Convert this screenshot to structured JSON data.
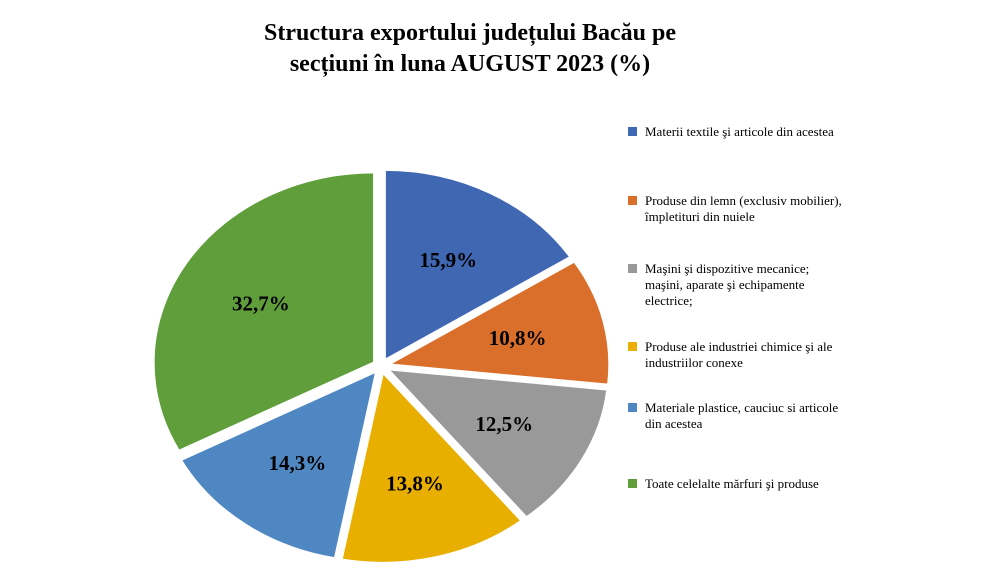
{
  "chart_data": {
    "type": "pie",
    "title_lines": [
      "Structura exportului județului Bacău pe",
      "secțiuni în luna AUGUST  2023 (%)"
    ],
    "unit": "%",
    "slices": [
      {
        "label": "Materii textile şi articole din acestea",
        "value": 15.9,
        "display": "15,9%",
        "color": "#4067B1"
      },
      {
        "label": "Produse din lemn (exclusiv mobilier), împletituri din nuiele",
        "value": 10.8,
        "display": "10,8%",
        "color": "#DA6E2B"
      },
      {
        "label": "Maşini şi dispozitive mecanice; maşini, aparate şi echipamente electrice;",
        "value": 12.5,
        "display": "12,5%",
        "color": "#999999"
      },
      {
        "label": "Produse ale industriei chimice şi ale industriilor conexe",
        "value": 13.8,
        "display": "13,8%",
        "color": "#E9AF00"
      },
      {
        "label": "Materiale plastice, cauciuc si articole din acestea",
        "value": 14.3,
        "display": "14,3%",
        "color": "#4F87C3"
      },
      {
        "label": "Toate celelalte mărfuri şi produse",
        "value": 32.7,
        "display": "32,7%",
        "color": "#5F9E3A"
      }
    ],
    "legend_position": "right"
  }
}
